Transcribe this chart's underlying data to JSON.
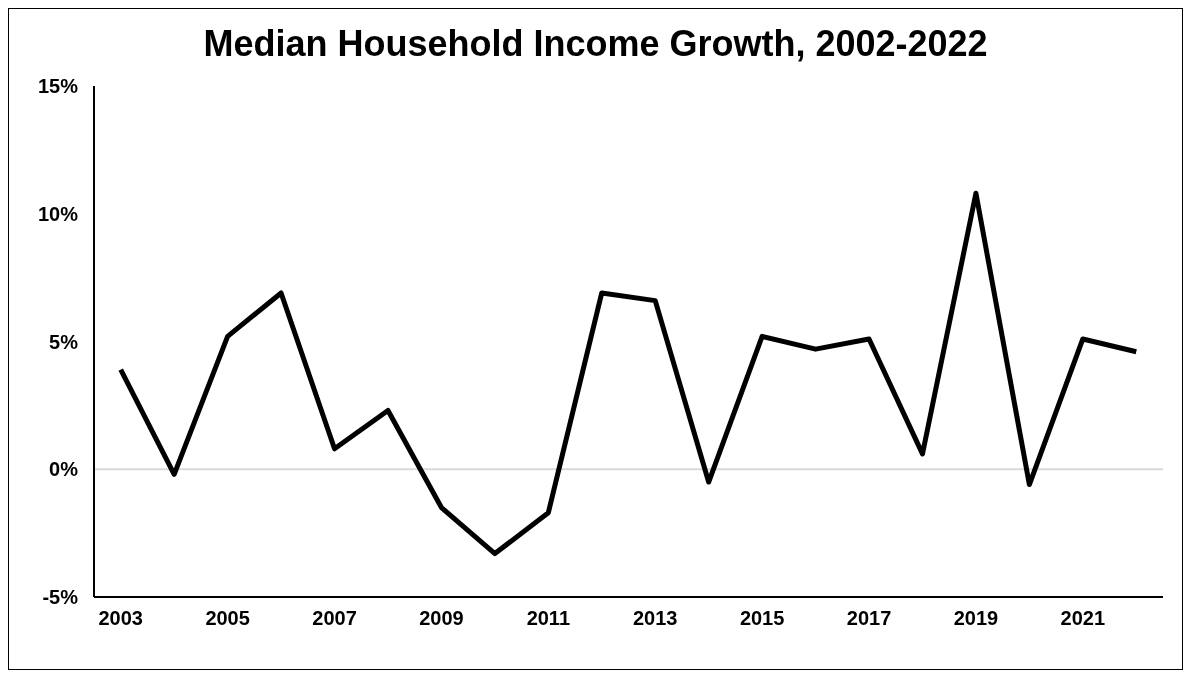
{
  "chart_data": {
    "type": "line",
    "title": "Median Household Income Growth, 2002-2022",
    "categories": [
      "2003",
      null,
      "2005",
      null,
      "2007",
      null,
      "2009",
      null,
      "2011",
      null,
      "2013",
      null,
      "2015",
      null,
      "2017",
      null,
      "2019",
      null,
      "2021",
      null
    ],
    "series": [
      {
        "color": "#000000",
        "values": [
          3.9,
          -0.2,
          5.2,
          6.9,
          0.8,
          2.3,
          -1.5,
          -3.3,
          -1.7,
          6.9,
          6.6,
          -0.5,
          5.2,
          4.7,
          5.1,
          0.6,
          10.8,
          -0.6,
          5.1,
          4.6
        ]
      }
    ],
    "ylim": [
      -5,
      15
    ],
    "yticks": [
      {
        "value": -5,
        "label": "-5%"
      },
      {
        "value": 0,
        "label": "0%"
      },
      {
        "value": 5,
        "label": "5%"
      },
      {
        "value": 10,
        "label": "10%"
      },
      {
        "value": 15,
        "label": "15%"
      }
    ],
    "ref_lines": [
      {
        "axis": "y",
        "value": 0,
        "color": "#d9d9d9"
      }
    ],
    "grid": false,
    "legend": false,
    "marker": "none",
    "line_style": "solid"
  }
}
